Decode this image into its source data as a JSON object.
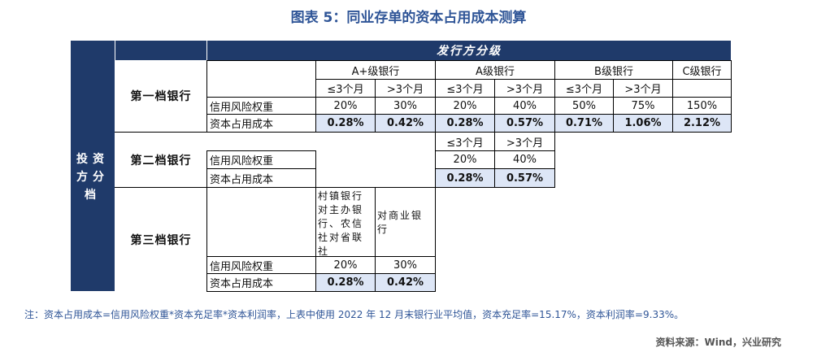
{
  "title": "图表 5：同业存单的资本占用成本测算",
  "header": {
    "issuer_tier": "发行方分级",
    "investor_tier": "投资方分档",
    "bank_groups": [
      "A+级银行",
      "A级银行",
      "B级银行",
      "C级银行"
    ],
    "le3m": "≤3个月",
    "gt3m": ">3个月"
  },
  "rows": {
    "tier1": "第一档银行",
    "tier2": "第二档银行",
    "tier3": "第三档银行",
    "risk_weight": "信用风险权重",
    "capital_cost": "资本占用成本"
  },
  "tier1_values": {
    "risk": [
      "20%",
      "30%",
      "20%",
      "40%",
      "50%",
      "75%",
      "150%"
    ],
    "cost": [
      "0.28%",
      "0.42%",
      "0.28%",
      "0.57%",
      "0.71%",
      "1.06%",
      "2.12%"
    ]
  },
  "tier2_values": {
    "risk": [
      "20%",
      "40%"
    ],
    "cost": [
      "0.28%",
      "0.57%"
    ]
  },
  "tier3": {
    "col1_header": "村镇银行对主办银行、农信社对省联社",
    "col2_header": "对商业银行",
    "risk": [
      "20%",
      "30%"
    ],
    "cost": [
      "0.28%",
      "0.42%"
    ]
  },
  "note": "注：资本占用成本=信用风险权重*资本充足率*资本利润率，上表中使用 2022 年 12 月末银行业平均值，资本充足率=15.17%，资本利润率=9.33%。",
  "source": "资料来源：Wind，兴业研究"
}
